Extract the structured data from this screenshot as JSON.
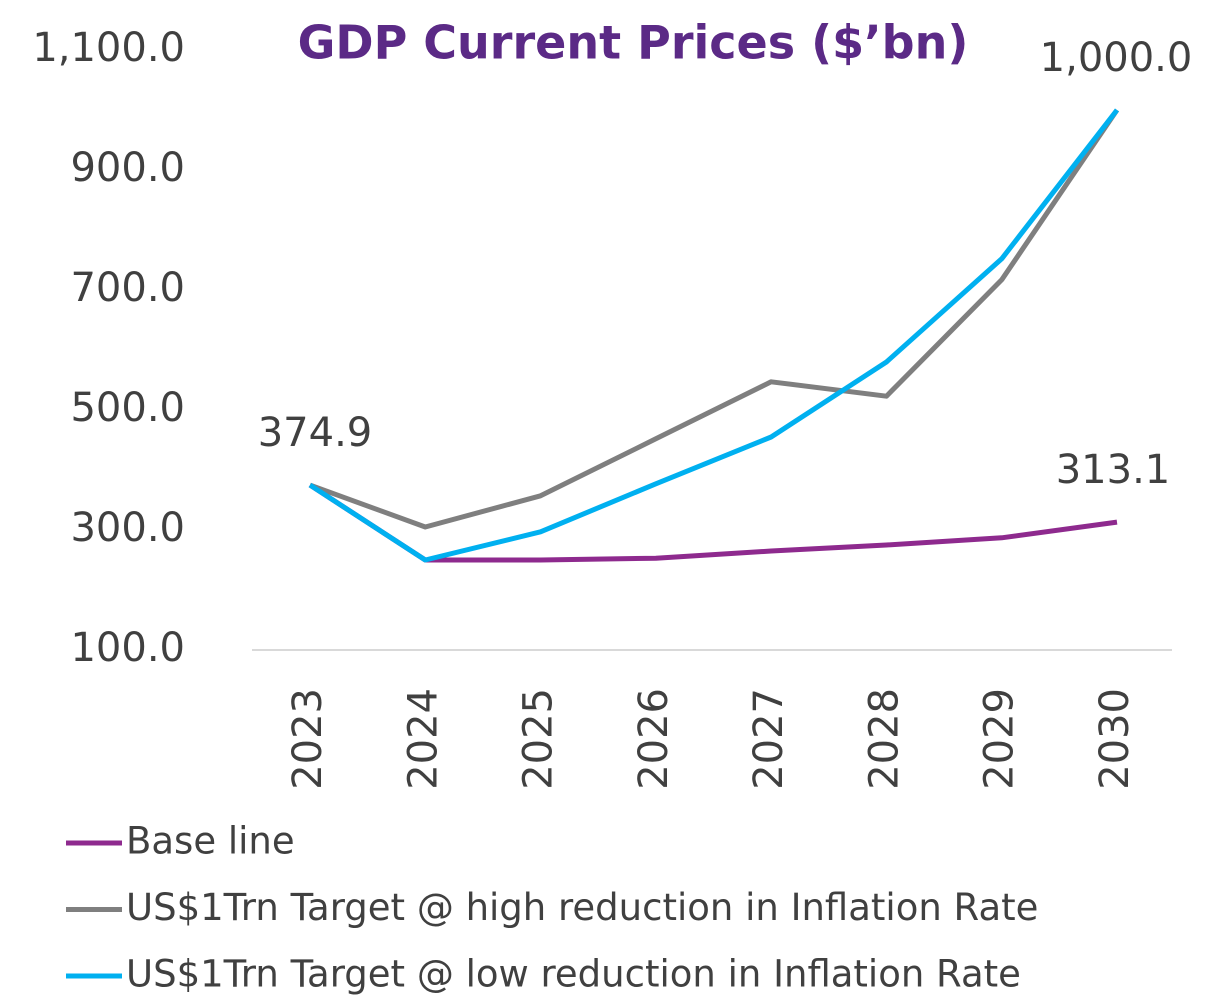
{
  "chart_data": {
    "type": "line",
    "title": "GDP Current Prices ($’bn)",
    "categories": [
      "2023",
      "2024",
      "2025",
      "2026",
      "2027",
      "2028",
      "2029",
      "2030"
    ],
    "series": [
      {
        "name": "Base line",
        "color": "#8e2a8e",
        "values": [
          374.9,
          250,
          250,
          253,
          265,
          275,
          287,
          313.1
        ],
        "value_labels": [
          "374.9",
          null,
          null,
          null,
          null,
          null,
          null,
          "313.1"
        ]
      },
      {
        "name": "US$1Trn Target @ high reduction in Inflation Rate",
        "color": "#7f7f7f",
        "values": [
          374.9,
          305,
          357,
          452,
          547,
          523,
          717,
          1000
        ],
        "value_labels": [
          null,
          null,
          null,
          null,
          null,
          null,
          null,
          "1,000.0"
        ]
      },
      {
        "name": "US$1Trn Target @ low reduction in Inflation Rate",
        "color": "#00b0f0",
        "values": [
          374.9,
          250,
          297,
          377,
          455,
          580,
          752,
          1000
        ]
      }
    ],
    "ylim": [
      100,
      1100
    ],
    "yticks": [
      {
        "value": 100,
        "label": "100.0"
      },
      {
        "value": 300,
        "label": "300.0"
      },
      {
        "value": 500,
        "label": "500.0"
      },
      {
        "value": 700,
        "label": "700.0"
      },
      {
        "value": 900,
        "label": "900.0"
      },
      {
        "value": 1100,
        "label": "1,100.0"
      }
    ],
    "grid": false
  }
}
